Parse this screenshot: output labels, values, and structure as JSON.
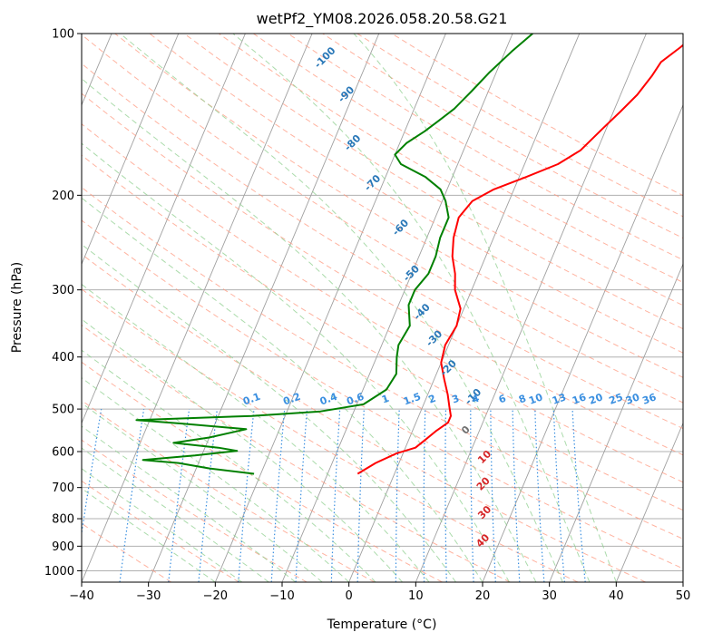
{
  "chart_data": {
    "type": "line",
    "title": "wetPf2_YM08.2026.058.20.58.G21",
    "xlabel": "Temperature (°C)",
    "ylabel": "Pressure (hPa)",
    "xlim": [
      -40,
      50
    ],
    "ylim": [
      1050,
      100
    ],
    "y_scale": "log",
    "grid": true,
    "x_ticks": [
      -40,
      -30,
      -20,
      -10,
      0,
      10,
      20,
      30,
      40,
      50
    ],
    "y_ticks": [
      100,
      200,
      300,
      400,
      500,
      600,
      700,
      800,
      900,
      1000
    ],
    "colors": {
      "temperature": "#ff0000",
      "dewpoint": "#008000",
      "isotherm": "#a0a0a0",
      "dry_adiabat": "#ff9a80",
      "moist_adiabat": "#8fcf8f",
      "mixing_ratio": "#3a8fe0",
      "height_label": "#2a78b8",
      "temp_label": "#d62728"
    },
    "temperature_profile": [
      {
        "p": 660,
        "t": -5.5
      },
      {
        "p": 630,
        "t": -3.5
      },
      {
        "p": 605,
        "t": -1.0
      },
      {
        "p": 590,
        "t": 1.5
      },
      {
        "p": 570,
        "t": 2.5
      },
      {
        "p": 550,
        "t": 3.5
      },
      {
        "p": 530,
        "t": 4.8
      },
      {
        "p": 515,
        "t": 4.8
      },
      {
        "p": 495,
        "t": 4.0
      },
      {
        "p": 470,
        "t": 3.0
      },
      {
        "p": 440,
        "t": 1.5
      },
      {
        "p": 410,
        "t": 0.0
      },
      {
        "p": 380,
        "t": -0.5
      },
      {
        "p": 350,
        "t": 0.0
      },
      {
        "p": 325,
        "t": -0.5
      },
      {
        "p": 300,
        "t": -2.5
      },
      {
        "p": 280,
        "t": -3.5
      },
      {
        "p": 260,
        "t": -5.0
      },
      {
        "p": 240,
        "t": -6.0
      },
      {
        "p": 220,
        "t": -6.5
      },
      {
        "p": 205,
        "t": -5.5
      },
      {
        "p": 195,
        "t": -3.0
      },
      {
        "p": 185,
        "t": 1.0
      },
      {
        "p": 175,
        "t": 5.0
      },
      {
        "p": 165,
        "t": 7.5
      },
      {
        "p": 150,
        "t": 9.5
      },
      {
        "p": 140,
        "t": 11.0
      },
      {
        "p": 130,
        "t": 12.5
      },
      {
        "p": 120,
        "t": 13.5
      },
      {
        "p": 113,
        "t": 14.0
      },
      {
        "p": 106,
        "t": 16.0
      },
      {
        "p": 100,
        "t": 17.5
      }
    ],
    "dewpoint_profile": [
      {
        "p": 660,
        "t": -21.0
      },
      {
        "p": 645,
        "t": -28.0
      },
      {
        "p": 630,
        "t": -33.0
      },
      {
        "p": 622,
        "t": -38.5
      },
      {
        "p": 610,
        "t": -31.0
      },
      {
        "p": 598,
        "t": -25.0
      },
      {
        "p": 590,
        "t": -28.0
      },
      {
        "p": 578,
        "t": -35.0
      },
      {
        "p": 565,
        "t": -30.0
      },
      {
        "p": 545,
        "t": -25.0
      },
      {
        "p": 532,
        "t": -35.0
      },
      {
        "p": 524,
        "t": -42.0
      },
      {
        "p": 515,
        "t": -25.0
      },
      {
        "p": 505,
        "t": -15.0
      },
      {
        "p": 490,
        "t": -9.0
      },
      {
        "p": 460,
        "t": -6.5
      },
      {
        "p": 430,
        "t": -6.0
      },
      {
        "p": 400,
        "t": -7.0
      },
      {
        "p": 380,
        "t": -7.5
      },
      {
        "p": 350,
        "t": -7.0
      },
      {
        "p": 320,
        "t": -8.5
      },
      {
        "p": 300,
        "t": -8.5
      },
      {
        "p": 280,
        "t": -7.5
      },
      {
        "p": 260,
        "t": -7.5
      },
      {
        "p": 240,
        "t": -8.0
      },
      {
        "p": 220,
        "t": -8.0
      },
      {
        "p": 205,
        "t": -9.5
      },
      {
        "p": 195,
        "t": -11.0
      },
      {
        "p": 185,
        "t": -14.0
      },
      {
        "p": 175,
        "t": -18.5
      },
      {
        "p": 168,
        "t": -20.0
      },
      {
        "p": 160,
        "t": -19.0
      },
      {
        "p": 152,
        "t": -17.0
      },
      {
        "p": 145,
        "t": -15.5
      },
      {
        "p": 138,
        "t": -14.0
      },
      {
        "p": 128,
        "t": -12.5
      },
      {
        "p": 118,
        "t": -11.0
      },
      {
        "p": 108,
        "t": -9.0
      },
      {
        "p": 100,
        "t": -7.0
      }
    ],
    "height_labels": [
      {
        "text": "-100",
        "t": -36.5,
        "p": 111
      },
      {
        "text": "-90",
        "t": -31.0,
        "p": 130
      },
      {
        "text": "-80",
        "t": -27.0,
        "p": 160
      },
      {
        "text": "-70",
        "t": -21.5,
        "p": 190
      },
      {
        "text": "-60",
        "t": -14.5,
        "p": 230
      },
      {
        "text": "-50",
        "t": -10.0,
        "p": 280
      },
      {
        "text": "-40",
        "t": -6.0,
        "p": 330
      },
      {
        "text": "-30",
        "t": -2.5,
        "p": 370
      },
      {
        "text": "-20",
        "t": 1.5,
        "p": 420
      },
      {
        "text": "-10",
        "t": 7.0,
        "p": 475
      }
    ],
    "mixing_ratio_labels": [
      {
        "text": "0.1",
        "t": -26.0,
        "p": 480
      },
      {
        "text": "0.2",
        "t": -20.0,
        "p": 480
      },
      {
        "text": "0.4",
        "t": -14.5,
        "p": 480
      },
      {
        "text": "0.6",
        "t": -10.5,
        "p": 480
      },
      {
        "text": "1",
        "t": -6.0,
        "p": 480
      },
      {
        "text": "1.5",
        "t": -2.0,
        "p": 480
      },
      {
        "text": "2",
        "t": 1.0,
        "p": 480
      },
      {
        "text": "3",
        "t": 4.5,
        "p": 480
      },
      {
        "text": "4",
        "t": 7.5,
        "p": 480
      },
      {
        "text": "6",
        "t": 11.5,
        "p": 480
      },
      {
        "text": "8",
        "t": 14.5,
        "p": 480
      },
      {
        "text": "10",
        "t": 16.5,
        "p": 480
      },
      {
        "text": "13",
        "t": 20.0,
        "p": 480
      },
      {
        "text": "16",
        "t": 23.0,
        "p": 480
      },
      {
        "text": "20",
        "t": 25.5,
        "p": 480
      },
      {
        "text": "25",
        "t": 28.5,
        "p": 480
      },
      {
        "text": "30",
        "t": 31.0,
        "p": 480
      },
      {
        "text": "36",
        "t": 33.5,
        "p": 480
      }
    ],
    "temp_labels": [
      {
        "text": "0",
        "t": 8.0,
        "p": 548,
        "color": "#707070"
      },
      {
        "text": "10",
        "t": 12.5,
        "p": 615,
        "color": "#d62728"
      },
      {
        "text": "20",
        "t": 14.0,
        "p": 690,
        "color": "#d62728"
      },
      {
        "text": "30",
        "t": 16.0,
        "p": 780,
        "color": "#d62728"
      },
      {
        "text": "40",
        "t": 17.5,
        "p": 880,
        "color": "#d62728"
      }
    ]
  }
}
